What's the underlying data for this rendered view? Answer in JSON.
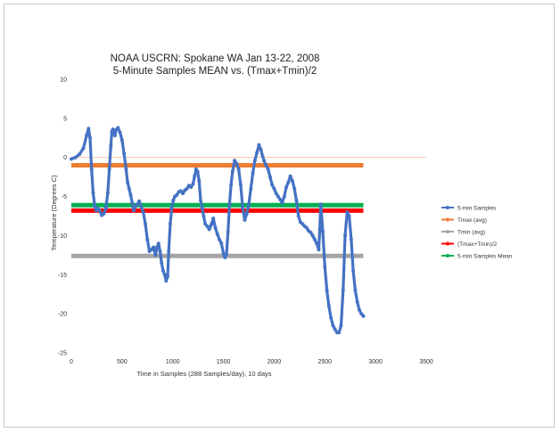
{
  "chart_data": {
    "type": "scatter",
    "title": "NOAA USCRN:  Spokane  WA Jan 13-22, 2008",
    "subtitle": "5-Minute Samples MEAN vs. (Tmax+Tmin)/2",
    "xlabel": "Time in Samples (288 Samples/day), 10 days",
    "ylabel": "Temperature (Degrees C)",
    "xlim": [
      0,
      3500
    ],
    "ylim": [
      -25,
      10
    ],
    "xticks": [
      0,
      500,
      1000,
      1500,
      2000,
      2500,
      3000,
      3500
    ],
    "yticks": [
      10,
      5,
      0,
      -5,
      -10,
      -15,
      -20,
      -25
    ],
    "legend_position": "right",
    "grid": false,
    "series": [
      {
        "name": "5-min Samples",
        "color": "#4472C4",
        "style": "line-markers",
        "x": [
          0,
          40,
          80,
          120,
          150,
          170,
          185,
          200,
          215,
          230,
          245,
          260,
          280,
          300,
          320,
          340,
          360,
          375,
          390,
          400,
          410,
          420,
          430,
          440,
          460,
          480,
          500,
          520,
          540,
          555,
          570,
          585,
          600,
          615,
          630,
          650,
          670,
          690,
          710,
          730,
          750,
          770,
          790,
          810,
          830,
          845,
          860,
          875,
          890,
          905,
          920,
          935,
          950,
          960,
          975,
          990,
          1005,
          1020,
          1040,
          1060,
          1080,
          1100,
          1120,
          1140,
          1160,
          1180,
          1200,
          1215,
          1230,
          1245,
          1260,
          1275,
          1290,
          1305,
          1320,
          1340,
          1360,
          1380,
          1400,
          1420,
          1440,
          1460,
          1480,
          1500,
          1515,
          1530,
          1545,
          1560,
          1575,
          1590,
          1610,
          1630,
          1650,
          1670,
          1690,
          1710,
          1730,
          1750,
          1770,
          1790,
          1810,
          1830,
          1850,
          1870,
          1885,
          1900,
          1920,
          1940,
          1960,
          1980,
          2000,
          2020,
          2040,
          2060,
          2080,
          2100,
          2120,
          2140,
          2160,
          2180,
          2200,
          2220,
          2240,
          2260,
          2280,
          2300,
          2320,
          2340,
          2360,
          2380,
          2400,
          2420,
          2440,
          2450,
          2460,
          2480,
          2500,
          2520,
          2540,
          2560,
          2580,
          2600,
          2620,
          2640,
          2660,
          2680,
          2700,
          2720,
          2740,
          2760,
          2780,
          2800,
          2820,
          2840,
          2860,
          2880
        ],
        "y": [
          -0.2,
          0,
          0.4,
          1.2,
          2.8,
          3.7,
          2.5,
          -1.5,
          -4.5,
          -6.2,
          -6.8,
          -6.5,
          -6.8,
          -7.4,
          -7.2,
          -6.5,
          -4.5,
          -1.5,
          1.5,
          3.3,
          3.6,
          3.2,
          2.8,
          3.5,
          3.8,
          3.2,
          2.2,
          0.5,
          -1.5,
          -3.2,
          -4.0,
          -4.8,
          -5.8,
          -6.8,
          -6.3,
          -6.0,
          -5.6,
          -6.3,
          -7.0,
          -8.5,
          -10.5,
          -12.0,
          -11.8,
          -11.5,
          -12.5,
          -11.5,
          -11.0,
          -12.0,
          -13.5,
          -14.5,
          -15.0,
          -15.8,
          -15.2,
          -12.0,
          -8.5,
          -6.5,
          -5.5,
          -5.0,
          -4.8,
          -4.4,
          -4.3,
          -4.6,
          -4.2,
          -4.0,
          -3.6,
          -3.8,
          -3.4,
          -2.4,
          -1.5,
          -1.8,
          -3.0,
          -5.5,
          -6.5,
          -7.5,
          -8.5,
          -8.8,
          -9.2,
          -8.6,
          -7.8,
          -9.0,
          -9.8,
          -10.5,
          -11.0,
          -12.3,
          -12.8,
          -12.4,
          -9.5,
          -6.0,
          -3.5,
          -1.8,
          -0.4,
          -0.8,
          -1.5,
          -3.5,
          -6.5,
          -8.0,
          -7.2,
          -6.0,
          -4.0,
          -2.0,
          -0.4,
          0.6,
          1.6,
          1.0,
          0.2,
          -0.4,
          -1.0,
          -1.5,
          -2.5,
          -3.5,
          -4.0,
          -4.6,
          -5.0,
          -5.4,
          -5.8,
          -5.0,
          -3.8,
          -3.2,
          -2.4,
          -3.0,
          -4.0,
          -5.5,
          -7.5,
          -8.3,
          -8.5,
          -8.8,
          -9.0,
          -9.4,
          -9.6,
          -10.0,
          -10.5,
          -11.0,
          -11.8,
          -9.2,
          -6.0,
          -9.5,
          -14.0,
          -17.0,
          -19.0,
          -20.5,
          -21.5,
          -22.0,
          -22.4,
          -22.4,
          -21.5,
          -17.0,
          -10.0,
          -7.0,
          -7.5,
          -10.5,
          -14.5,
          -17.0,
          -18.5,
          -19.5,
          -20.0,
          -20.3
        ]
      },
      {
        "name": "Tmax (avg)",
        "color": "#ED7D31",
        "style": "line-markers",
        "x": [
          0,
          2880
        ],
        "y": [
          -1.0,
          -1.0
        ]
      },
      {
        "name": "Tmin (avg)",
        "color": "#A5A5A5",
        "style": "line-markers",
        "x": [
          0,
          2880
        ],
        "y": [
          -12.6,
          -12.6
        ]
      },
      {
        "name": "(Tmax+Tmin)/2",
        "color": "#FF0000",
        "style": "line-markers",
        "x": [
          0,
          2880
        ],
        "y": [
          -6.8,
          -6.8
        ]
      },
      {
        "name": "5-min Samples Mean",
        "color": "#00B050",
        "style": "line-markers",
        "x": [
          0,
          2880
        ],
        "y": [
          -6.1,
          -6.1
        ]
      }
    ]
  }
}
